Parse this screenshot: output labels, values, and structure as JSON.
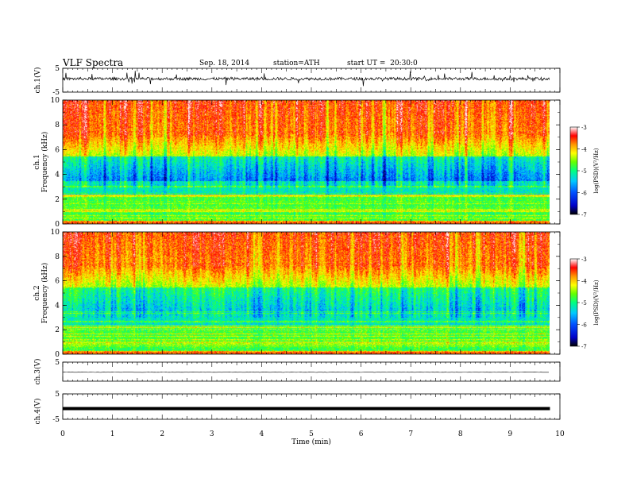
{
  "header": {
    "title": "VLF Spectra",
    "date": "Sep. 18, 2014",
    "station": "station=ATH",
    "start_ut": "start UT =  20:30:0"
  },
  "chart_data": [
    {
      "type": "line",
      "panel": "ch1-waveform",
      "ylabel": "ch.1(V)",
      "ylim": [
        -5,
        5
      ],
      "yticks": [
        "5",
        "-5"
      ],
      "description_of_values": "noisy waveform around ~0.5 V with spikes up to ~4 V",
      "color": "#000000"
    },
    {
      "type": "heatmap",
      "panel": "ch1-spectrogram",
      "ylabel": "ch.1\nFrequency (kHz)",
      "ylabel_line1": "ch.1",
      "ylabel_line2": "Frequency (kHz)",
      "ylim": [
        0,
        10
      ],
      "yticks": [
        "0",
        "2",
        "4",
        "6",
        "8",
        "10"
      ],
      "colorbar": {
        "label": "log(PSD) (V²/Hz)",
        "label_text": "log(PSD)(V²/Hz)",
        "range": [
          -7,
          -3
        ],
        "ticks": [
          "-3",
          "-4",
          "-5",
          "-6",
          "-7"
        ],
        "colormap": [
          "#000000",
          "#0000c8",
          "#0050ff",
          "#00c8ff",
          "#00ff80",
          "#64ff00",
          "#ffff00",
          "#ff9600",
          "#ff0000",
          "#ffffff"
        ]
      }
    },
    {
      "type": "heatmap",
      "panel": "ch2-spectrogram",
      "ylabel_line1": "ch.2",
      "ylabel_line2": "Frequency (kHz)",
      "ylim": [
        0,
        10
      ],
      "yticks": [
        "0",
        "2",
        "4",
        "6",
        "8",
        "10"
      ],
      "colorbar": {
        "label_text": "log(PSD)(V²/Hz)",
        "range": [
          -7,
          -3
        ],
        "ticks": [
          "-3",
          "-4",
          "-5",
          "-6",
          "-7"
        ]
      }
    },
    {
      "type": "line",
      "panel": "ch3-waveform",
      "ylabel": "ch.3(V)",
      "ylim": [
        -5,
        5
      ],
      "yticks": [
        "5"
      ],
      "level": -0.3,
      "color": "#000000"
    },
    {
      "type": "line",
      "panel": "ch4-waveform",
      "ylabel": "ch.4(V)",
      "ylim": [
        -5,
        5
      ],
      "yticks": [
        "5",
        "-5"
      ],
      "level": -0.8,
      "color": "#000000"
    }
  ],
  "xaxis": {
    "label": "Time  (min)",
    "range": [
      0,
      10
    ],
    "ticks": [
      "0",
      "1",
      "2",
      "3",
      "4",
      "5",
      "6",
      "7",
      "8",
      "9",
      "10"
    ],
    "data_end": 9.8
  }
}
